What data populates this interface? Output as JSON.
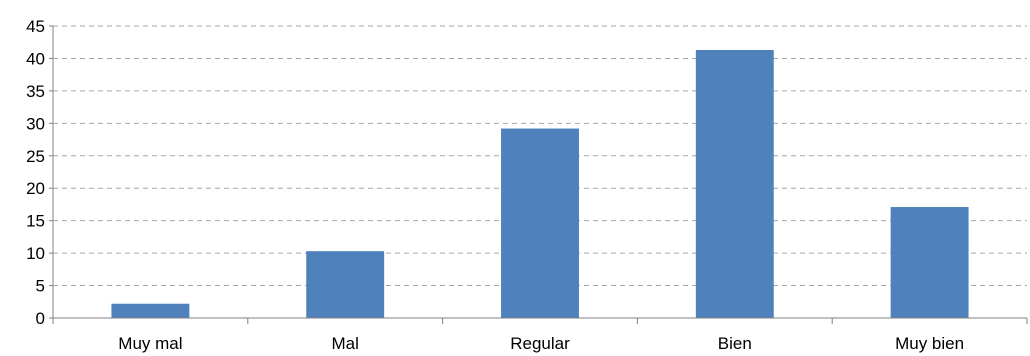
{
  "chart_data": {
    "type": "bar",
    "title": "",
    "xlabel": "",
    "ylabel": "",
    "categories": [
      "Muy mal",
      "Mal",
      "Regular",
      "Bien",
      "Muy bien"
    ],
    "values": [
      2.2,
      10.3,
      29.2,
      41.3,
      17.1
    ],
    "ylim": [
      0,
      45
    ],
    "yticks": [
      "0",
      "5",
      "10",
      "15",
      "20",
      "25",
      "30",
      "35",
      "40",
      "45"
    ],
    "grid": true,
    "legend": "none",
    "bar_color": "#4f81bd"
  }
}
